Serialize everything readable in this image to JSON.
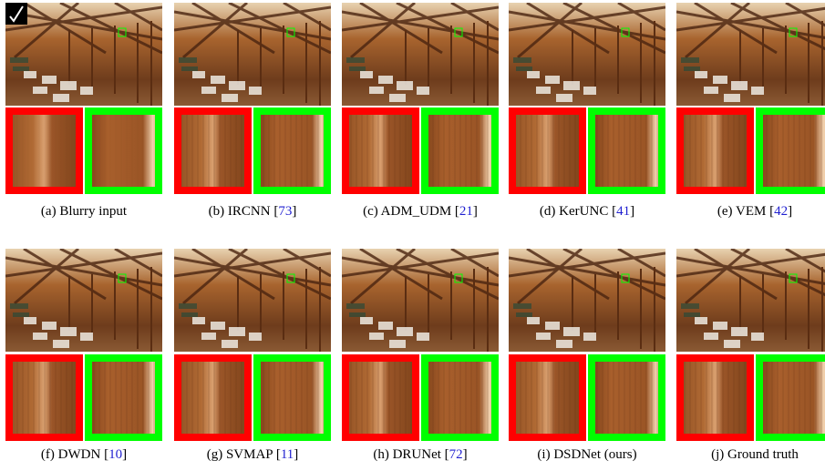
{
  "panels": [
    {
      "caption": {
        "text": "(a) Blurry input"
      }
    },
    {
      "caption": {
        "text": "(b) IRCNN [",
        "cite": "73",
        "close": "]"
      }
    },
    {
      "caption": {
        "text": "(c) ADM_UDM [",
        "cite": "21",
        "close": "]"
      }
    },
    {
      "caption": {
        "text": "(d) KerUNC [",
        "cite": "41",
        "close": "]"
      }
    },
    {
      "caption": {
        "text": "(e) VEM [",
        "cite": "42",
        "close": "]"
      }
    },
    {
      "caption": {
        "text": "(f) DWDN [",
        "cite": "10",
        "close": "]"
      }
    },
    {
      "caption": {
        "text": "(g) SVMAP [",
        "cite": "11",
        "close": "]"
      }
    },
    {
      "caption": {
        "text": "(h) DRUNet [",
        "cite": "72",
        "close": "]"
      }
    },
    {
      "caption": {
        "text": "(i) DSDNet (ours)"
      }
    },
    {
      "caption": {
        "text": "(j) Ground truth"
      }
    }
  ]
}
